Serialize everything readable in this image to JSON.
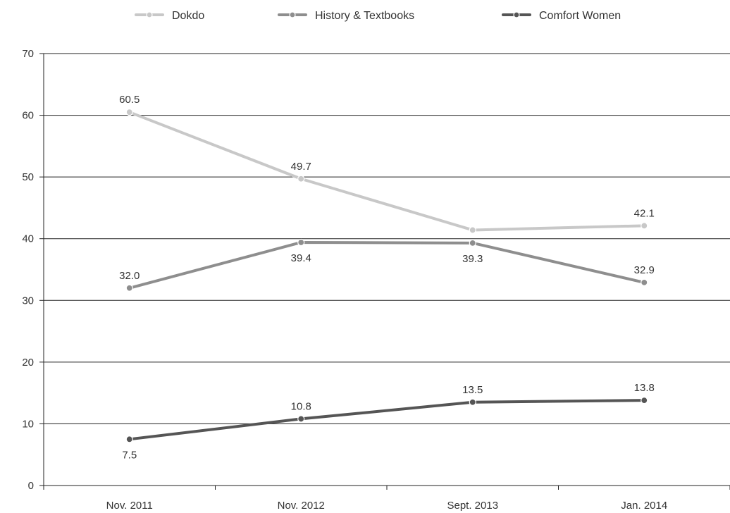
{
  "chart_data": {
    "type": "line",
    "categories": [
      "Nov. 2011",
      "Nov. 2012",
      "Sept. 2013",
      "Jan. 2014"
    ],
    "series": [
      {
        "name": "Dokdo",
        "values": [
          60.5,
          49.7,
          41.4,
          42.1
        ],
        "labels": [
          "60.5",
          "49.7",
          "",
          "42.1"
        ],
        "color": "#c8c8c8"
      },
      {
        "name": "History & Textbooks",
        "values": [
          32.0,
          39.4,
          39.3,
          32.9
        ],
        "labels": [
          "32.0",
          "39.4",
          "39.3",
          "32.9"
        ],
        "color": "#8e8e8e"
      },
      {
        "name": "Comfort Women",
        "values": [
          7.5,
          10.8,
          13.5,
          13.8
        ],
        "labels": [
          "7.5",
          "10.8",
          "13.5",
          "13.8"
        ],
        "color": "#555555"
      }
    ],
    "ylim": [
      0,
      70
    ],
    "yticks": [
      0,
      10,
      20,
      30,
      40,
      50,
      60,
      70
    ],
    "grid": true,
    "legend": "top",
    "title": "",
    "xlabel": "",
    "ylabel": ""
  }
}
